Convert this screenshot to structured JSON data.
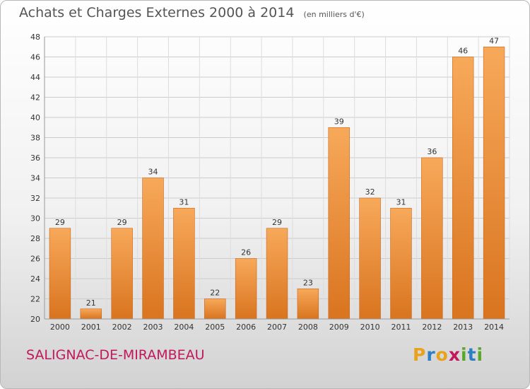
{
  "title": "Achats et Charges Externes 2000 à 2014",
  "unit": "(en milliers d'€)",
  "commune": "SALIGNAC-DE-MIRAMBEAU",
  "brand": {
    "letters": [
      "P",
      "r",
      "o",
      "x",
      "i",
      "t",
      "i"
    ],
    "colors": [
      "#e8a21c",
      "#2e7fc1",
      "#e8a21c",
      "#c2185b",
      "#5aa82a",
      "#2e7fc1",
      "#5aa82a"
    ]
  },
  "colors": {
    "bar_light": "#f7a95a",
    "bar_dark": "#d9741f",
    "grid": "#cccccc",
    "axis_text": "#333333"
  },
  "chart_data": {
    "type": "bar",
    "title": "Achats et Charges Externes 2000 à 2014",
    "subtitle": "(en milliers d'€)",
    "categories": [
      "2000",
      "2001",
      "2002",
      "2003",
      "2004",
      "2005",
      "2006",
      "2007",
      "2008",
      "2009",
      "2010",
      "2011",
      "2012",
      "2013",
      "2014"
    ],
    "values": [
      29,
      21,
      29,
      34,
      31,
      22,
      26,
      29,
      23,
      39,
      32,
      31,
      36,
      46,
      47
    ],
    "ylim": [
      20,
      48
    ],
    "yticks": [
      20,
      22,
      24,
      26,
      28,
      30,
      32,
      34,
      36,
      38,
      40,
      42,
      44,
      46,
      48
    ],
    "grid": true,
    "data_labels": true,
    "xlabel": "",
    "ylabel": ""
  }
}
